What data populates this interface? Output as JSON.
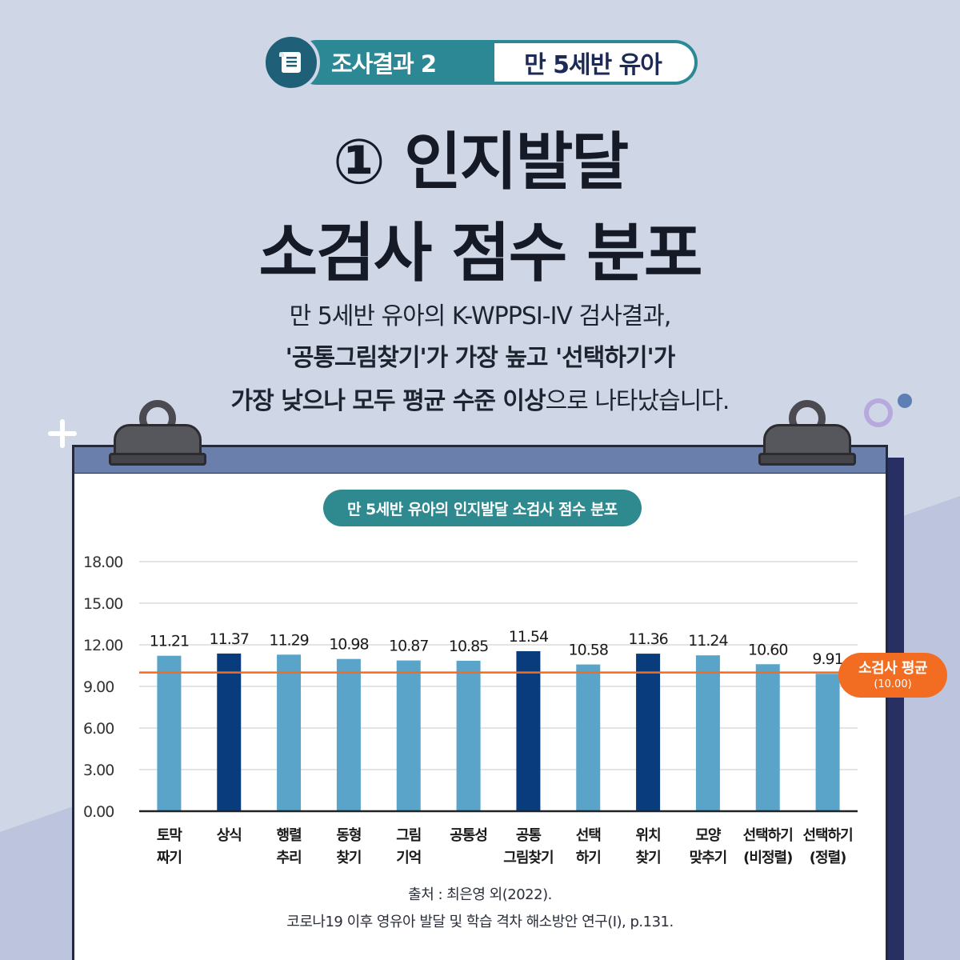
{
  "badge": {
    "left": "조사결과 2",
    "right": "만 5세반 유아",
    "icon": "scroll-icon"
  },
  "title": {
    "line1": "① 인지발달",
    "line2": "소검사 점수 분포"
  },
  "description": {
    "line1": "만 5세반 유아의 K-WPPSI-IV  검사결과,",
    "line2": "'공통그림찾기'가 가장 높고 '선택하기'가",
    "line3_bold": "가장 낮으나 모두 평균 수준 이상",
    "line3_rest": "으로 나타났습니다."
  },
  "chart_data": {
    "type": "bar",
    "title": "만 5세반 유아의 인지발달 소검사 점수 분포",
    "categories": [
      [
        "토막",
        "짜기"
      ],
      [
        "상식"
      ],
      [
        "행렬",
        "추리"
      ],
      [
        "동형",
        "찾기"
      ],
      [
        "그림",
        "기억"
      ],
      [
        "공통성"
      ],
      [
        "공통",
        "그림찾기"
      ],
      [
        "선택",
        "하기"
      ],
      [
        "위치",
        "찾기"
      ],
      [
        "모양",
        "맞추기"
      ],
      [
        "선택하기",
        "(비정렬)"
      ],
      [
        "선택하기",
        "(정렬)"
      ]
    ],
    "values": [
      11.21,
      11.37,
      11.29,
      10.98,
      10.87,
      10.85,
      11.54,
      10.58,
      11.36,
      11.24,
      10.6,
      9.91
    ],
    "value_labels": [
      "11.21",
      "11.37",
      "11.29",
      "10.98",
      "10.87",
      "10.85",
      "11.54",
      "10.58",
      "11.36",
      "11.24",
      "10.60",
      "9.91"
    ],
    "highlight": [
      false,
      true,
      false,
      false,
      false,
      false,
      true,
      false,
      true,
      false,
      false,
      false
    ],
    "ylim": [
      0,
      18
    ],
    "yticks": [
      "0.00",
      "3.00",
      "6.00",
      "9.00",
      "12.00",
      "15.00",
      "18.00"
    ],
    "ytick_values": [
      0,
      3,
      6,
      9,
      12,
      15,
      18
    ],
    "reference_line": {
      "value": 10.0,
      "label": "소검사 평균",
      "sublabel": "(10.00)"
    },
    "grid": true,
    "colors": {
      "bar": "#5aa3c9",
      "highlight": "#083c7c",
      "reference": "#f26c21",
      "grid": "#dcdcdc"
    }
  },
  "source": {
    "line1": "출처 : 최은영 외(2022).",
    "line2": "코로나19 이후 영유아 발달 및 학습 격차 해소방안 연구(Ⅰ), p.131."
  },
  "colors": {
    "background": "#cfd7e6",
    "teal": "#2c8895",
    "navy": "#1c2a55",
    "orange": "#f26c21"
  }
}
